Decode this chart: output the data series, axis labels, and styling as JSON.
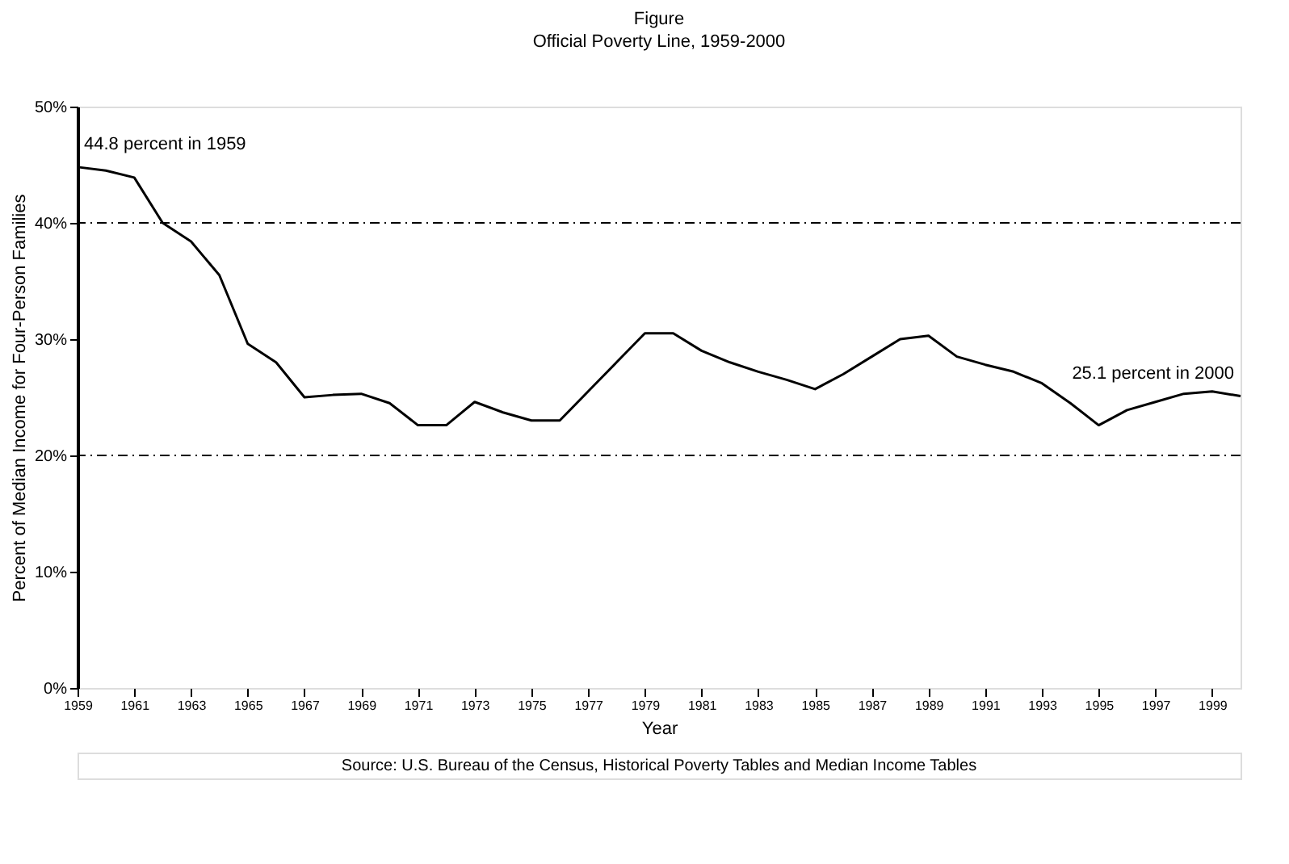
{
  "chart_data": {
    "type": "line",
    "title": "Figure",
    "subtitle": "Official Poverty Line, 1959-2000",
    "xlabel": "Year",
    "ylabel": "Percent of Median Income for Four-Person Families",
    "x": [
      1959,
      1960,
      1961,
      1962,
      1963,
      1964,
      1965,
      1966,
      1967,
      1968,
      1969,
      1970,
      1971,
      1972,
      1973,
      1974,
      1975,
      1976,
      1977,
      1978,
      1979,
      1980,
      1981,
      1982,
      1983,
      1984,
      1985,
      1986,
      1987,
      1988,
      1989,
      1990,
      1991,
      1992,
      1993,
      1994,
      1995,
      1996,
      1997,
      1998,
      1999,
      2000
    ],
    "series": [
      {
        "color": "#000000",
        "values": [
          44.8,
          44.5,
          43.9,
          40.0,
          38.4,
          35.5,
          29.6,
          28.0,
          25.0,
          25.2,
          25.3,
          24.5,
          22.6,
          22.6,
          24.6,
          23.7,
          23.0,
          23.0,
          25.5,
          28.0,
          30.5,
          30.5,
          29.0,
          28.0,
          27.2,
          26.5,
          25.7,
          27.0,
          28.5,
          30.0,
          30.3,
          28.5,
          27.8,
          27.2,
          26.2,
          24.5,
          22.6,
          23.9,
          24.6,
          25.3,
          25.5,
          25.1
        ]
      }
    ],
    "xlim": [
      1959,
      2000
    ],
    "xticks": [
      1959,
      1961,
      1963,
      1965,
      1967,
      1969,
      1971,
      1973,
      1975,
      1977,
      1979,
      1981,
      1983,
      1985,
      1987,
      1989,
      1991,
      1993,
      1995,
      1997,
      1999
    ],
    "ylim": [
      0,
      50
    ],
    "yticks": [
      {
        "value": 0,
        "label": "0%"
      },
      {
        "value": 10,
        "label": "10%"
      },
      {
        "value": 20,
        "label": "20%"
      },
      {
        "value": 30,
        "label": "30%"
      },
      {
        "value": 40,
        "label": "40%"
      },
      {
        "value": 50,
        "label": "50%"
      }
    ],
    "ref_lines": [
      {
        "axis": "y",
        "value": 40,
        "color": "#000000",
        "line_style": "dashed"
      },
      {
        "axis": "y",
        "value": 20,
        "color": "#000000",
        "line_style": "dashed"
      }
    ],
    "annotations": [
      {
        "text": "44.8 percent in 1959",
        "x": 1959,
        "y": 44.8
      },
      {
        "text": "25.1 percent in 2000",
        "x": 2000,
        "y": 25.1
      },
      "Source: U.S. Bureau of the Census, Historical Poverty Tables and Median Income Tables"
    ],
    "grid": false,
    "marker": "none",
    "line_style": "solid"
  }
}
